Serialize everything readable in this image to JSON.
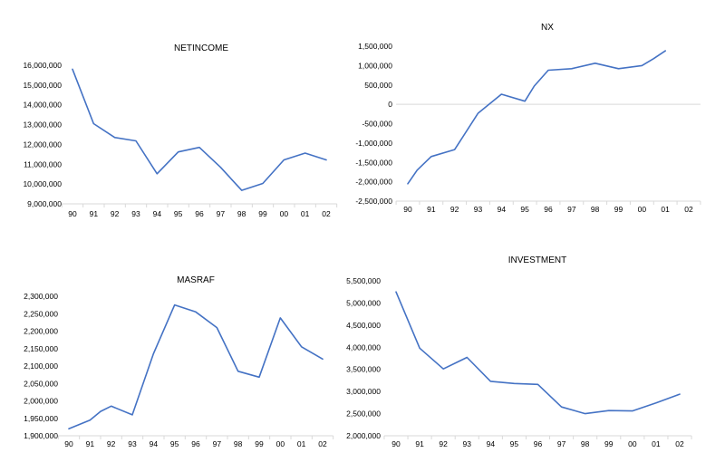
{
  "chart_data": [
    {
      "type": "line",
      "title": "NETINCOME",
      "categories": [
        "90",
        "91",
        "92",
        "93",
        "94",
        "95",
        "96",
        "97",
        "98",
        "99",
        "00",
        "01",
        "02"
      ],
      "x_values": [
        0,
        1,
        2,
        3,
        4,
        5,
        6,
        7,
        8,
        9,
        10,
        11,
        12
      ],
      "values": [
        15800000,
        13050000,
        12350000,
        12180000,
        10520000,
        11620000,
        11850000,
        10850000,
        9680000,
        10030000,
        11220000,
        11560000,
        11220000
      ],
      "yticks": [
        9000000,
        10000000,
        11000000,
        12000000,
        13000000,
        14000000,
        15000000,
        16000000
      ],
      "ytick_labels": [
        "9,000,000",
        "10,000,000",
        "11,000,000",
        "12,000,000",
        "13,000,000",
        "14,000,000",
        "15,000,000",
        "16,000,000"
      ],
      "ylim": [
        9000000,
        16000000
      ],
      "xaxis_at": 9000000,
      "grid": false,
      "color": "#4472c4"
    },
    {
      "type": "line",
      "title": "NX",
      "categories": [
        "90",
        "91",
        "92",
        "93",
        "94",
        "95",
        "96",
        "97",
        "98",
        "99",
        "00",
        "01",
        "02"
      ],
      "x_values": [
        0,
        0.4,
        1,
        2,
        3,
        4,
        5,
        5.4,
        6,
        7,
        8,
        9,
        10,
        10.5,
        11
      ],
      "values": [
        -2050000,
        -1700000,
        -1350000,
        -1170000,
        -230000,
        260000,
        80000,
        470000,
        880000,
        920000,
        1060000,
        920000,
        1000000,
        1180000,
        1380000
      ],
      "yticks": [
        -2500000,
        -2000000,
        -1500000,
        -1000000,
        -500000,
        0,
        500000,
        1000000,
        1500000
      ],
      "ytick_labels": [
        "-2,500,000",
        "-2,000,000",
        "-1,500,000",
        "-1,000,000",
        "-500,000",
        "0",
        "500,000",
        "1,000,000",
        "1,500,000"
      ],
      "ylim": [
        -2500000,
        1500000
      ],
      "xaxis_at": -2500000,
      "zero_line": true,
      "grid": false,
      "color": "#4472c4"
    },
    {
      "type": "line",
      "title": "MASRAF",
      "categories": [
        "90",
        "91",
        "92",
        "93",
        "94",
        "95",
        "96",
        "97",
        "98",
        "99",
        "00",
        "01",
        "02"
      ],
      "x_values": [
        0,
        1,
        1.5,
        2,
        3,
        4,
        5,
        6,
        7,
        8,
        9,
        10,
        11,
        12
      ],
      "values": [
        1920000,
        1945000,
        1970000,
        1985000,
        1960000,
        2135000,
        2275000,
        2255000,
        2210000,
        2085000,
        2068000,
        2238000,
        2155000,
        2120000
      ],
      "yticks": [
        1900000,
        1950000,
        2000000,
        2050000,
        2100000,
        2150000,
        2200000,
        2250000,
        2300000
      ],
      "ytick_labels": [
        "1,900,000",
        "1,950,000",
        "2,000,000",
        "2,050,000",
        "2,100,000",
        "2,150,000",
        "2,200,000",
        "2,250,000",
        "2,300,000"
      ],
      "ylim": [
        1900000,
        2300000
      ],
      "xaxis_at": 1900000,
      "grid": false,
      "color": "#4472c4"
    },
    {
      "type": "line",
      "title": "INVESTMENT",
      "categories": [
        "90",
        "91",
        "92",
        "93",
        "94",
        "95",
        "96",
        "97",
        "98",
        "99",
        "00",
        "01",
        "02"
      ],
      "x_values": [
        0,
        1,
        2,
        3,
        4,
        5,
        6,
        7,
        8,
        9,
        10,
        11,
        12
      ],
      "values": [
        5250000,
        3980000,
        3510000,
        3770000,
        3230000,
        3180000,
        3160000,
        2650000,
        2500000,
        2570000,
        2560000,
        2740000,
        2940000
      ],
      "yticks": [
        2000000,
        2500000,
        3000000,
        3500000,
        4000000,
        4500000,
        5000000,
        5500000
      ],
      "ytick_labels": [
        "2,000,000",
        "2,500,000",
        "3,000,000",
        "3,500,000",
        "4,000,000",
        "4,500,000",
        "5,000,000",
        "5,500,000"
      ],
      "ylim": [
        2000000,
        5500000
      ],
      "xaxis_at": 2000000,
      "grid": false,
      "color": "#4472c4"
    }
  ]
}
